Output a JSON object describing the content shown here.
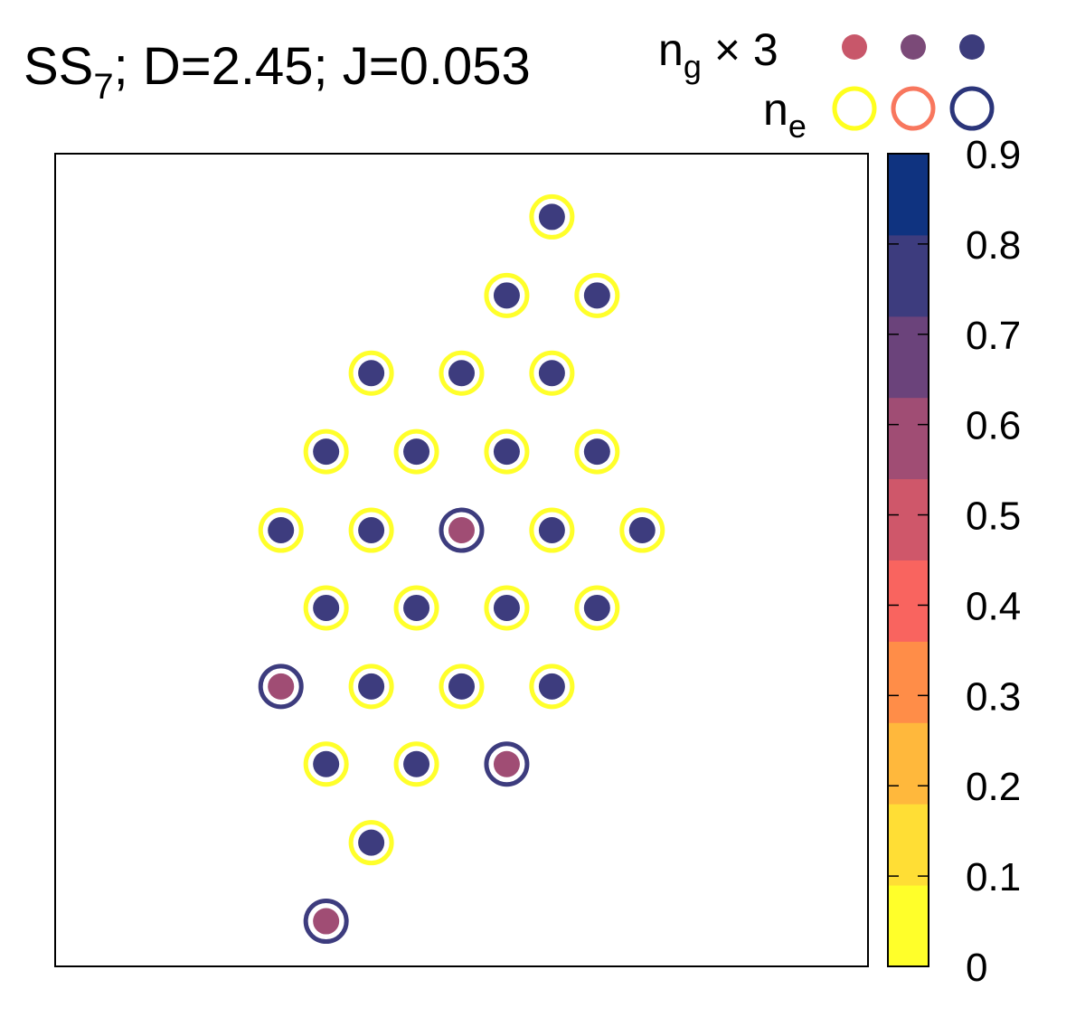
{
  "chart_data": {
    "type": "scatter",
    "title": {
      "prefix": "SS",
      "subscript": "7",
      "rest": "; D=2.45; J=0.053"
    },
    "legend": {
      "placement": "top-right",
      "ng": {
        "symbol": "n",
        "sub": "g",
        "suffix": "× 3",
        "marker_colors": [
          "#c8576a",
          "#7b4a78",
          "#3c3c7c"
        ]
      },
      "ne": {
        "symbol": "n",
        "sub": "e",
        "ring_colors": [
          "#ffff1e",
          "#f8775e",
          "#2b357a"
        ]
      }
    },
    "colorbar": {
      "range": [
        0,
        0.9
      ],
      "ticks": [
        "0",
        "0.1",
        "0.2",
        "0.3",
        "0.4",
        "0.5",
        "0.6",
        "0.7",
        "0.8",
        "0.9"
      ],
      "colors": [
        "#ffff2a",
        "#ffde35",
        "#ffb83c",
        "#ff8d48",
        "#f9645f",
        "#cf576a",
        "#a04d74",
        "#6b437b",
        "#3d3c7e",
        "#0f3380"
      ]
    },
    "xlim": [
      0,
      9
    ],
    "ylim": [
      0,
      9
    ],
    "sites": [
      {
        "x": 5.5,
        "y": 8.3,
        "ng": 0.75,
        "ne": 0.05
      },
      {
        "x": 5.0,
        "y": 7.43,
        "ng": 0.75,
        "ne": 0.05
      },
      {
        "x": 6.0,
        "y": 7.43,
        "ng": 0.75,
        "ne": 0.05
      },
      {
        "x": 3.5,
        "y": 6.57,
        "ng": 0.75,
        "ne": 0.05
      },
      {
        "x": 4.5,
        "y": 6.57,
        "ng": 0.75,
        "ne": 0.05
      },
      {
        "x": 5.5,
        "y": 6.57,
        "ng": 0.75,
        "ne": 0.05
      },
      {
        "x": 3.0,
        "y": 5.7,
        "ng": 0.75,
        "ne": 0.05
      },
      {
        "x": 4.0,
        "y": 5.7,
        "ng": 0.75,
        "ne": 0.05
      },
      {
        "x": 5.0,
        "y": 5.7,
        "ng": 0.75,
        "ne": 0.05
      },
      {
        "x": 6.0,
        "y": 5.7,
        "ng": 0.75,
        "ne": 0.05
      },
      {
        "x": 2.5,
        "y": 4.83,
        "ng": 0.75,
        "ne": 0.05
      },
      {
        "x": 3.5,
        "y": 4.83,
        "ng": 0.75,
        "ne": 0.05
      },
      {
        "x": 4.5,
        "y": 4.83,
        "ng": 0.55,
        "ne": 0.8
      },
      {
        "x": 5.5,
        "y": 4.83,
        "ng": 0.75,
        "ne": 0.05
      },
      {
        "x": 6.5,
        "y": 4.83,
        "ng": 0.75,
        "ne": 0.05
      },
      {
        "x": 3.0,
        "y": 3.97,
        "ng": 0.75,
        "ne": 0.05
      },
      {
        "x": 4.0,
        "y": 3.97,
        "ng": 0.75,
        "ne": 0.05
      },
      {
        "x": 5.0,
        "y": 3.97,
        "ng": 0.75,
        "ne": 0.05
      },
      {
        "x": 6.0,
        "y": 3.97,
        "ng": 0.75,
        "ne": 0.05
      },
      {
        "x": 2.5,
        "y": 3.1,
        "ng": 0.55,
        "ne": 0.8
      },
      {
        "x": 3.5,
        "y": 3.1,
        "ng": 0.75,
        "ne": 0.05
      },
      {
        "x": 4.5,
        "y": 3.1,
        "ng": 0.75,
        "ne": 0.05
      },
      {
        "x": 5.5,
        "y": 3.1,
        "ng": 0.75,
        "ne": 0.05
      },
      {
        "x": 3.0,
        "y": 2.24,
        "ng": 0.75,
        "ne": 0.05
      },
      {
        "x": 4.0,
        "y": 2.24,
        "ng": 0.75,
        "ne": 0.05
      },
      {
        "x": 5.0,
        "y": 2.24,
        "ng": 0.55,
        "ne": 0.8
      },
      {
        "x": 3.5,
        "y": 1.37,
        "ng": 0.75,
        "ne": 0.05
      },
      {
        "x": 3.0,
        "y": 0.5,
        "ng": 0.55,
        "ne": 0.8
      }
    ]
  }
}
